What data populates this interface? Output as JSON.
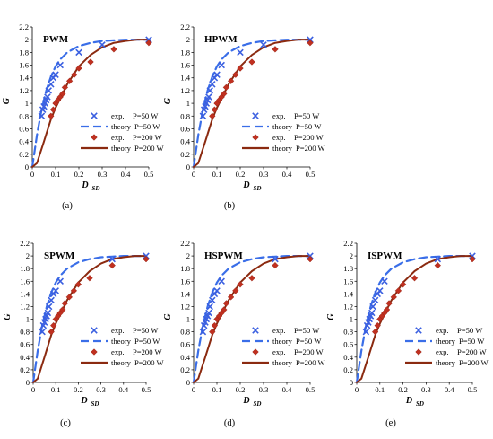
{
  "chart_data": [
    {
      "type": "scatter",
      "panel_label": "(a)",
      "title": "PWM",
      "xlabel": "D",
      "xlabel_sub": "SD",
      "ylabel": "G",
      "xlim": [
        0,
        0.5
      ],
      "ylim": [
        0,
        2.2
      ],
      "x_ticks": [
        0,
        0.1,
        0.2,
        0.3,
        0.4,
        0.5
      ],
      "y_ticks": [
        0,
        0.2,
        0.4,
        0.6,
        0.8,
        1,
        1.2,
        1.4,
        1.6,
        1.8,
        2,
        2.2
      ],
      "grid": false,
      "legend_position": "bottom-right",
      "series": [
        {
          "name": "exp. P=50 W",
          "kind": "markers",
          "marker": "cross",
          "color": "#3a5fe0",
          "x": [
            0.04,
            0.045,
            0.05,
            0.055,
            0.06,
            0.065,
            0.07,
            0.08,
            0.09,
            0.1,
            0.12,
            0.2,
            0.3,
            0.5
          ],
          "y": [
            0.8,
            0.9,
            0.95,
            1.0,
            1.05,
            1.1,
            1.2,
            1.3,
            1.4,
            1.45,
            1.6,
            1.8,
            1.92,
            2.0
          ]
        },
        {
          "name": "theory P=50 W",
          "kind": "line",
          "dash": "9,5",
          "color": "#3a6ee8",
          "x": [
            0,
            0.02,
            0.04,
            0.06,
            0.08,
            0.1,
            0.12,
            0.15,
            0.2,
            0.25,
            0.3,
            0.35,
            0.4,
            0.45,
            0.5
          ],
          "y": [
            0,
            0.5,
            0.9,
            1.2,
            1.42,
            1.58,
            1.69,
            1.8,
            1.9,
            1.95,
            1.98,
            1.99,
            2.0,
            2.0,
            2.0
          ]
        },
        {
          "name": "exp. P=200 W",
          "kind": "markers",
          "marker": "diamond",
          "color": "#c03020",
          "x": [
            0.08,
            0.09,
            0.1,
            0.11,
            0.12,
            0.13,
            0.14,
            0.16,
            0.18,
            0.2,
            0.25,
            0.35,
            0.5
          ],
          "y": [
            0.8,
            0.9,
            1.0,
            1.05,
            1.1,
            1.15,
            1.25,
            1.35,
            1.45,
            1.55,
            1.65,
            1.85,
            1.95
          ]
        },
        {
          "name": "theory P=200 W",
          "kind": "line",
          "color": "#8b2a10",
          "x": [
            0,
            0.02,
            0.05,
            0.08,
            0.1,
            0.15,
            0.2,
            0.25,
            0.3,
            0.35,
            0.4,
            0.45,
            0.5
          ],
          "y": [
            0,
            0.06,
            0.4,
            0.75,
            0.93,
            1.3,
            1.58,
            1.76,
            1.88,
            1.95,
            1.98,
            2.0,
            2.0
          ]
        }
      ]
    },
    {
      "type": "scatter",
      "panel_label": "(b)",
      "title": "HPWM",
      "xlabel": "D",
      "xlabel_sub": "SD",
      "ylabel": "G",
      "xlim": [
        0,
        0.5
      ],
      "ylim": [
        0,
        2.2
      ],
      "x_ticks": [
        0,
        0.1,
        0.2,
        0.3,
        0.4,
        0.5
      ],
      "y_ticks": [
        0,
        0.2,
        0.4,
        0.6,
        0.8,
        1,
        1.2,
        1.4,
        1.6,
        1.8,
        2,
        2.2
      ],
      "grid": false,
      "legend_position": "bottom-right",
      "series": [
        {
          "name": "exp. P=50 W",
          "kind": "markers",
          "marker": "cross",
          "color": "#3a5fe0",
          "x": [
            0.04,
            0.045,
            0.05,
            0.055,
            0.06,
            0.065,
            0.07,
            0.08,
            0.09,
            0.1,
            0.12,
            0.2,
            0.3,
            0.5
          ],
          "y": [
            0.8,
            0.9,
            0.95,
            1.0,
            1.05,
            1.1,
            1.2,
            1.3,
            1.4,
            1.45,
            1.6,
            1.8,
            1.92,
            2.0
          ]
        },
        {
          "name": "theory P=50 W",
          "kind": "line",
          "dash": "9,5",
          "color": "#3a6ee8",
          "x": [
            0,
            0.02,
            0.04,
            0.06,
            0.08,
            0.1,
            0.12,
            0.15,
            0.2,
            0.25,
            0.3,
            0.35,
            0.4,
            0.45,
            0.5
          ],
          "y": [
            0,
            0.5,
            0.9,
            1.2,
            1.42,
            1.58,
            1.69,
            1.8,
            1.9,
            1.95,
            1.98,
            1.99,
            2.0,
            2.0,
            2.0
          ]
        },
        {
          "name": "exp. P=200 W",
          "kind": "markers",
          "marker": "diamond",
          "color": "#c03020",
          "x": [
            0.08,
            0.09,
            0.1,
            0.11,
            0.12,
            0.13,
            0.14,
            0.16,
            0.18,
            0.2,
            0.25,
            0.35,
            0.5
          ],
          "y": [
            0.8,
            0.9,
            1.0,
            1.05,
            1.1,
            1.15,
            1.25,
            1.35,
            1.45,
            1.55,
            1.65,
            1.85,
            1.95
          ]
        },
        {
          "name": "theory P=200 W",
          "kind": "line",
          "color": "#8b2a10",
          "x": [
            0,
            0.02,
            0.05,
            0.08,
            0.1,
            0.15,
            0.2,
            0.25,
            0.3,
            0.35,
            0.4,
            0.45,
            0.5
          ],
          "y": [
            0,
            0.06,
            0.4,
            0.75,
            0.93,
            1.3,
            1.58,
            1.76,
            1.88,
            1.95,
            1.98,
            2.0,
            2.0
          ]
        }
      ]
    },
    {
      "type": "scatter",
      "panel_label": "(c)",
      "title": "SPWM",
      "xlabel": "D",
      "xlabel_sub": "SD",
      "ylabel": "G",
      "xlim": [
        0,
        0.5
      ],
      "ylim": [
        0,
        2.2
      ],
      "x_ticks": [
        0,
        0.1,
        0.2,
        0.3,
        0.4,
        0.5
      ],
      "y_ticks": [
        0,
        0.2,
        0.4,
        0.6,
        0.8,
        1,
        1.2,
        1.4,
        1.6,
        1.8,
        2,
        2.2
      ],
      "grid": false,
      "legend_position": "bottom-right",
      "series": [
        {
          "name": "exp. P=50 W",
          "kind": "markers",
          "marker": "cross",
          "color": "#3a5fe0",
          "x": [
            0.04,
            0.045,
            0.05,
            0.055,
            0.06,
            0.065,
            0.07,
            0.08,
            0.09,
            0.1,
            0.12,
            0.35,
            0.5
          ],
          "y": [
            0.8,
            0.9,
            0.95,
            1.0,
            1.05,
            1.1,
            1.2,
            1.3,
            1.4,
            1.45,
            1.6,
            1.95,
            2.0
          ]
        },
        {
          "name": "theory P=50 W",
          "kind": "line",
          "dash": "9,5",
          "color": "#3a6ee8",
          "x": [
            0,
            0.02,
            0.04,
            0.06,
            0.08,
            0.1,
            0.12,
            0.15,
            0.2,
            0.25,
            0.3,
            0.35,
            0.4,
            0.45,
            0.5
          ],
          "y": [
            0,
            0.5,
            0.9,
            1.2,
            1.42,
            1.58,
            1.69,
            1.8,
            1.9,
            1.95,
            1.98,
            1.99,
            2.0,
            2.0,
            2.0
          ]
        },
        {
          "name": "exp. P=200 W",
          "kind": "markers",
          "marker": "diamond",
          "color": "#c03020",
          "x": [
            0.08,
            0.09,
            0.1,
            0.11,
            0.12,
            0.13,
            0.14,
            0.16,
            0.18,
            0.2,
            0.25,
            0.35,
            0.5
          ],
          "y": [
            0.8,
            0.9,
            1.0,
            1.05,
            1.1,
            1.15,
            1.25,
            1.35,
            1.45,
            1.55,
            1.65,
            1.85,
            1.95
          ]
        },
        {
          "name": "theory P=200 W",
          "kind": "line",
          "color": "#8b2a10",
          "x": [
            0,
            0.02,
            0.05,
            0.08,
            0.1,
            0.15,
            0.2,
            0.25,
            0.3,
            0.35,
            0.4,
            0.45,
            0.5
          ],
          "y": [
            0,
            0.06,
            0.4,
            0.75,
            0.93,
            1.3,
            1.58,
            1.76,
            1.88,
            1.95,
            1.98,
            2.0,
            2.0
          ]
        }
      ]
    },
    {
      "type": "scatter",
      "panel_label": "(d)",
      "title": "HSPWM",
      "xlabel": "D",
      "xlabel_sub": "SD",
      "ylabel": "G",
      "xlim": [
        0,
        0.5
      ],
      "ylim": [
        0,
        2.2
      ],
      "x_ticks": [
        0,
        0.1,
        0.2,
        0.3,
        0.4,
        0.5
      ],
      "y_ticks": [
        0,
        0.2,
        0.4,
        0.6,
        0.8,
        1,
        1.2,
        1.4,
        1.6,
        1.8,
        2,
        2.2
      ],
      "grid": false,
      "legend_position": "bottom-right",
      "series": [
        {
          "name": "exp. P=50 W",
          "kind": "markers",
          "marker": "cross",
          "color": "#3a5fe0",
          "x": [
            0.04,
            0.045,
            0.05,
            0.055,
            0.06,
            0.065,
            0.07,
            0.08,
            0.09,
            0.1,
            0.12,
            0.35,
            0.5
          ],
          "y": [
            0.8,
            0.9,
            0.95,
            1.0,
            1.05,
            1.1,
            1.2,
            1.3,
            1.4,
            1.45,
            1.6,
            1.95,
            2.0
          ]
        },
        {
          "name": "theory P=50 W",
          "kind": "line",
          "dash": "9,5",
          "color": "#3a6ee8",
          "x": [
            0,
            0.02,
            0.04,
            0.06,
            0.08,
            0.1,
            0.12,
            0.15,
            0.2,
            0.25,
            0.3,
            0.35,
            0.4,
            0.45,
            0.5
          ],
          "y": [
            0,
            0.5,
            0.9,
            1.2,
            1.42,
            1.58,
            1.69,
            1.8,
            1.9,
            1.95,
            1.98,
            1.99,
            2.0,
            2.0,
            2.0
          ]
        },
        {
          "name": "exp. P=200 W",
          "kind": "markers",
          "marker": "diamond",
          "color": "#c03020",
          "x": [
            0.08,
            0.09,
            0.1,
            0.11,
            0.12,
            0.13,
            0.14,
            0.16,
            0.18,
            0.2,
            0.25,
            0.35,
            0.5
          ],
          "y": [
            0.8,
            0.9,
            1.0,
            1.05,
            1.1,
            1.15,
            1.25,
            1.35,
            1.45,
            1.55,
            1.65,
            1.85,
            1.95
          ]
        },
        {
          "name": "theory P=200 W",
          "kind": "line",
          "color": "#8b2a10",
          "x": [
            0,
            0.02,
            0.05,
            0.08,
            0.1,
            0.15,
            0.2,
            0.25,
            0.3,
            0.35,
            0.4,
            0.45,
            0.5
          ],
          "y": [
            0,
            0.06,
            0.4,
            0.75,
            0.93,
            1.3,
            1.58,
            1.76,
            1.88,
            1.95,
            1.98,
            2.0,
            2.0
          ]
        }
      ]
    },
    {
      "type": "scatter",
      "panel_label": "(e)",
      "title": "ISPWM",
      "xlabel": "D",
      "xlabel_sub": "SD",
      "ylabel": "G",
      "xlim": [
        0,
        0.5
      ],
      "ylim": [
        0,
        2.2
      ],
      "x_ticks": [
        0,
        0.1,
        0.2,
        0.3,
        0.4,
        0.5
      ],
      "y_ticks": [
        0,
        0.2,
        0.4,
        0.6,
        0.8,
        1,
        1.2,
        1.4,
        1.6,
        1.8,
        2,
        2.2
      ],
      "grid": false,
      "legend_position": "bottom-right",
      "series": [
        {
          "name": "exp. P=50 W",
          "kind": "markers",
          "marker": "cross",
          "color": "#3a5fe0",
          "x": [
            0.04,
            0.045,
            0.05,
            0.055,
            0.06,
            0.065,
            0.07,
            0.08,
            0.09,
            0.1,
            0.12,
            0.35,
            0.5
          ],
          "y": [
            0.8,
            0.9,
            0.95,
            1.0,
            1.05,
            1.1,
            1.2,
            1.3,
            1.4,
            1.45,
            1.6,
            1.95,
            2.0
          ]
        },
        {
          "name": "theory P=50 W",
          "kind": "line",
          "dash": "9,5",
          "color": "#3a6ee8",
          "x": [
            0,
            0.02,
            0.04,
            0.06,
            0.08,
            0.1,
            0.12,
            0.15,
            0.2,
            0.25,
            0.3,
            0.35,
            0.4,
            0.45,
            0.5
          ],
          "y": [
            0,
            0.5,
            0.9,
            1.2,
            1.42,
            1.58,
            1.69,
            1.8,
            1.9,
            1.95,
            1.98,
            1.99,
            2.0,
            2.0,
            2.0
          ]
        },
        {
          "name": "exp. P=200 W",
          "kind": "markers",
          "marker": "diamond",
          "color": "#c03020",
          "x": [
            0.08,
            0.09,
            0.1,
            0.11,
            0.12,
            0.13,
            0.14,
            0.16,
            0.18,
            0.2,
            0.25,
            0.35,
            0.5
          ],
          "y": [
            0.8,
            0.9,
            1.0,
            1.05,
            1.1,
            1.15,
            1.25,
            1.35,
            1.45,
            1.55,
            1.65,
            1.85,
            1.95
          ]
        },
        {
          "name": "theory P=200 W",
          "kind": "line",
          "color": "#8b2a10",
          "x": [
            0,
            0.02,
            0.05,
            0.08,
            0.1,
            0.15,
            0.2,
            0.25,
            0.3,
            0.35,
            0.4,
            0.45,
            0.5
          ],
          "y": [
            0,
            0.06,
            0.4,
            0.75,
            0.93,
            1.3,
            1.58,
            1.76,
            1.88,
            1.95,
            1.98,
            2.0,
            2.0
          ]
        }
      ]
    }
  ]
}
